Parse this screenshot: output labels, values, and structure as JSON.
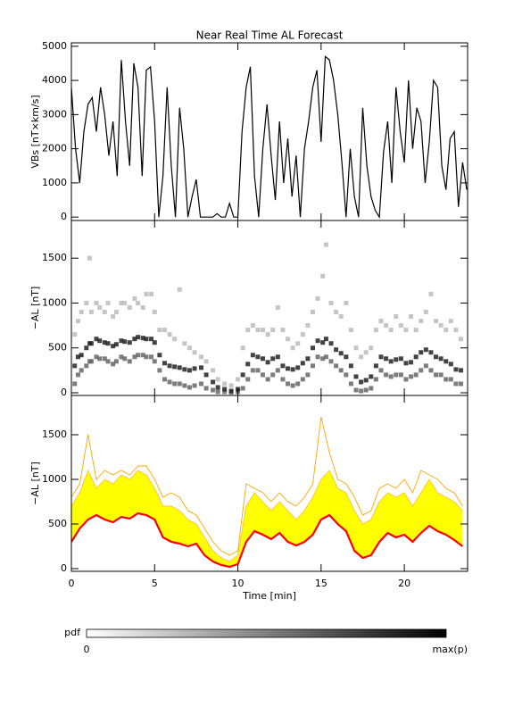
{
  "title": "Near Real Time AL Forecast",
  "colorbar": {
    "label": "pdf",
    "min_label": "0",
    "max_label": "max(p)"
  },
  "chart_data": [
    {
      "type": "line",
      "ylabel": "VBs [nT×km/s]",
      "xlim": [
        0,
        23.8
      ],
      "xticks": [
        0,
        5,
        10,
        15,
        20
      ],
      "ylim": [
        -100,
        5100
      ],
      "yticks": [
        0,
        1000,
        2000,
        3000,
        4000,
        5000
      ],
      "x": [
        0,
        0.25,
        0.5,
        0.75,
        1,
        1.25,
        1.5,
        1.75,
        2,
        2.25,
        2.5,
        2.75,
        3,
        3.25,
        3.5,
        3.75,
        4,
        4.25,
        4.5,
        4.75,
        5,
        5.25,
        5.5,
        5.75,
        6,
        6.25,
        6.5,
        6.75,
        7,
        7.25,
        7.5,
        7.75,
        8,
        8.25,
        8.5,
        8.75,
        9,
        9.25,
        9.5,
        9.75,
        10,
        10.25,
        10.5,
        10.75,
        11,
        11.25,
        11.5,
        11.75,
        12,
        12.25,
        12.5,
        12.75,
        13,
        13.25,
        13.5,
        13.75,
        14,
        14.25,
        14.5,
        14.75,
        15,
        15.25,
        15.5,
        15.75,
        16,
        16.25,
        16.5,
        16.75,
        17,
        17.25,
        17.5,
        17.75,
        18,
        18.25,
        18.5,
        18.75,
        19,
        19.25,
        19.5,
        19.75,
        20,
        20.25,
        20.5,
        20.75,
        21,
        21.25,
        21.5,
        21.75,
        22,
        22.25,
        22.5,
        22.75,
        23,
        23.25,
        23.5,
        23.75
      ],
      "series": [
        {
          "color": "#000000",
          "values": [
            3800,
            2000,
            1000,
            2500,
            3300,
            3500,
            2500,
            3800,
            3000,
            1800,
            2800,
            1200,
            4600,
            2800,
            1500,
            4500,
            3800,
            1200,
            4300,
            4400,
            2800,
            0,
            1200,
            3800,
            1500,
            0,
            3200,
            2000,
            0,
            600,
            1100,
            0,
            0,
            0,
            0,
            100,
            0,
            0,
            400,
            0,
            0,
            2500,
            3800,
            4400,
            1200,
            0,
            2000,
            3300,
            1800,
            500,
            2800,
            1000,
            2300,
            600,
            1800,
            0,
            2000,
            2800,
            3800,
            4300,
            2200,
            4700,
            4600,
            4000,
            3000,
            1600,
            0,
            2000,
            600,
            0,
            3200,
            1500,
            600,
            200,
            0,
            1900,
            2800,
            1000,
            3800,
            2500,
            1600,
            4000,
            2000,
            3200,
            2800,
            1000,
            2200,
            4000,
            3800,
            1500,
            800,
            2300,
            2500,
            300,
            1600,
            800
          ]
        }
      ]
    },
    {
      "type": "scatter",
      "ylabel": "−AL [nT]",
      "xlim": [
        0,
        23.8
      ],
      "xticks": [
        0,
        5,
        10,
        15,
        20
      ],
      "ylim": [
        -30,
        1920
      ],
      "yticks": [
        0,
        500,
        1000,
        1500
      ],
      "x": [
        0.2,
        0.4,
        0.6,
        0.9,
        1.1,
        1.2,
        1.5,
        1.7,
        2.0,
        2.2,
        2.5,
        2.7,
        3.0,
        3.2,
        3.5,
        3.8,
        4.0,
        4.3,
        4.5,
        4.8,
        5.0,
        5.3,
        5.6,
        5.9,
        6.2,
        6.5,
        6.8,
        7.1,
        7.4,
        7.8,
        8.1,
        8.5,
        8.8,
        9.2,
        9.6,
        10.0,
        10.3,
        10.6,
        10.9,
        11.2,
        11.5,
        11.8,
        12.1,
        12.4,
        12.7,
        13.0,
        13.3,
        13.6,
        13.9,
        14.2,
        14.5,
        14.8,
        15.1,
        15.3,
        15.6,
        15.9,
        16.2,
        16.5,
        16.8,
        17.1,
        17.4,
        17.7,
        18.0,
        18.3,
        18.6,
        18.9,
        19.2,
        19.5,
        19.8,
        20.1,
        20.4,
        20.7,
        21.0,
        21.3,
        21.6,
        21.9,
        22.2,
        22.5,
        22.8,
        23.1,
        23.4
      ],
      "series": [
        {
          "color": "#bbbbbb",
          "values": [
            650,
            800,
            900,
            1000,
            1500,
            900,
            1000,
            950,
            900,
            1000,
            850,
            900,
            1000,
            1000,
            950,
            1050,
            1000,
            950,
            1100,
            1100,
            900,
            700,
            700,
            650,
            600,
            1150,
            550,
            500,
            450,
            400,
            350,
            250,
            150,
            100,
            80,
            150,
            500,
            700,
            750,
            700,
            700,
            650,
            700,
            950,
            700,
            600,
            500,
            550,
            650,
            750,
            900,
            1050,
            1300,
            1650,
            1000,
            900,
            850,
            1000,
            700,
            500,
            400,
            450,
            500,
            700,
            800,
            750,
            700,
            850,
            750,
            700,
            850,
            700,
            800,
            900,
            1100,
            800,
            750,
            700,
            800,
            700,
            600
          ]
        },
        {
          "color": "#666666",
          "values": [
            100,
            200,
            250,
            300,
            350,
            350,
            400,
            380,
            380,
            350,
            320,
            350,
            400,
            380,
            350,
            400,
            420,
            420,
            400,
            400,
            350,
            250,
            150,
            120,
            100,
            100,
            80,
            60,
            80,
            100,
            50,
            30,
            10,
            10,
            5,
            10,
            50,
            150,
            250,
            250,
            200,
            150,
            200,
            250,
            150,
            100,
            80,
            100,
            150,
            200,
            300,
            400,
            380,
            400,
            350,
            300,
            250,
            200,
            100,
            30,
            20,
            30,
            50,
            150,
            250,
            200,
            180,
            200,
            200,
            150,
            180,
            200,
            250,
            300,
            250,
            200,
            200,
            150,
            150,
            100,
            100
          ]
        },
        {
          "color": "#222222",
          "values": [
            300,
            400,
            420,
            500,
            550,
            550,
            600,
            580,
            560,
            550,
            520,
            540,
            580,
            570,
            560,
            600,
            620,
            610,
            600,
            600,
            560,
            420,
            330,
            300,
            290,
            280,
            260,
            250,
            270,
            280,
            200,
            120,
            60,
            40,
            20,
            40,
            200,
            320,
            420,
            400,
            380,
            340,
            380,
            400,
            300,
            270,
            260,
            280,
            330,
            380,
            500,
            580,
            560,
            600,
            550,
            480,
            440,
            400,
            300,
            180,
            120,
            140,
            180,
            300,
            400,
            380,
            350,
            370,
            380,
            330,
            340,
            400,
            450,
            480,
            450,
            400,
            380,
            350,
            320,
            260,
            250
          ]
        }
      ]
    },
    {
      "type": "band",
      "ylabel": "−AL [nT]",
      "xlabel": "Time [min]",
      "xlim": [
        0,
        23.8
      ],
      "xticks": [
        0,
        5,
        10,
        15,
        20
      ],
      "ylim": [
        -30,
        1940
      ],
      "yticks": [
        0,
        500,
        1000,
        1500
      ],
      "x": [
        0,
        0.5,
        1,
        1.5,
        2,
        2.5,
        3,
        3.5,
        4,
        4.5,
        5,
        5.5,
        6,
        6.5,
        7,
        7.5,
        8,
        8.5,
        9,
        9.5,
        10,
        10.5,
        11,
        11.5,
        12,
        12.5,
        13,
        13.5,
        14,
        14.5,
        15,
        15.5,
        16,
        16.5,
        17,
        17.5,
        18,
        18.5,
        19,
        19.5,
        20,
        20.5,
        21,
        21.5,
        22,
        22.5,
        23,
        23.5
      ],
      "series": [
        {
          "color": "#ff0000",
          "values": [
            300,
            450,
            550,
            600,
            550,
            520,
            580,
            560,
            620,
            600,
            550,
            350,
            300,
            280,
            250,
            280,
            150,
            80,
            40,
            20,
            50,
            300,
            420,
            380,
            330,
            400,
            300,
            260,
            300,
            380,
            550,
            600,
            500,
            420,
            200,
            120,
            150,
            300,
            400,
            350,
            380,
            300,
            400,
            480,
            420,
            380,
            320,
            250
          ]
        },
        {
          "color": "#ffff00",
          "values": [
            700,
            850,
            1100,
            900,
            1000,
            950,
            1050,
            1000,
            1100,
            1050,
            900,
            700,
            700,
            650,
            550,
            500,
            350,
            200,
            120,
            80,
            150,
            700,
            850,
            750,
            650,
            750,
            650,
            550,
            650,
            800,
            1000,
            1100,
            900,
            850,
            650,
            500,
            550,
            750,
            850,
            800,
            850,
            700,
            850,
            1000,
            850,
            800,
            750,
            650
          ]
        },
        {
          "color": "#ffa500",
          "values": [
            800,
            950,
            1500,
            1000,
            1100,
            1050,
            1100,
            1050,
            1150,
            1150,
            1000,
            800,
            850,
            800,
            650,
            600,
            450,
            300,
            200,
            150,
            200,
            950,
            900,
            850,
            750,
            850,
            750,
            700,
            800,
            950,
            1700,
            1300,
            1000,
            950,
            800,
            600,
            650,
            900,
            950,
            900,
            1000,
            850,
            1100,
            1050,
            1000,
            900,
            850,
            700
          ]
        }
      ]
    }
  ]
}
